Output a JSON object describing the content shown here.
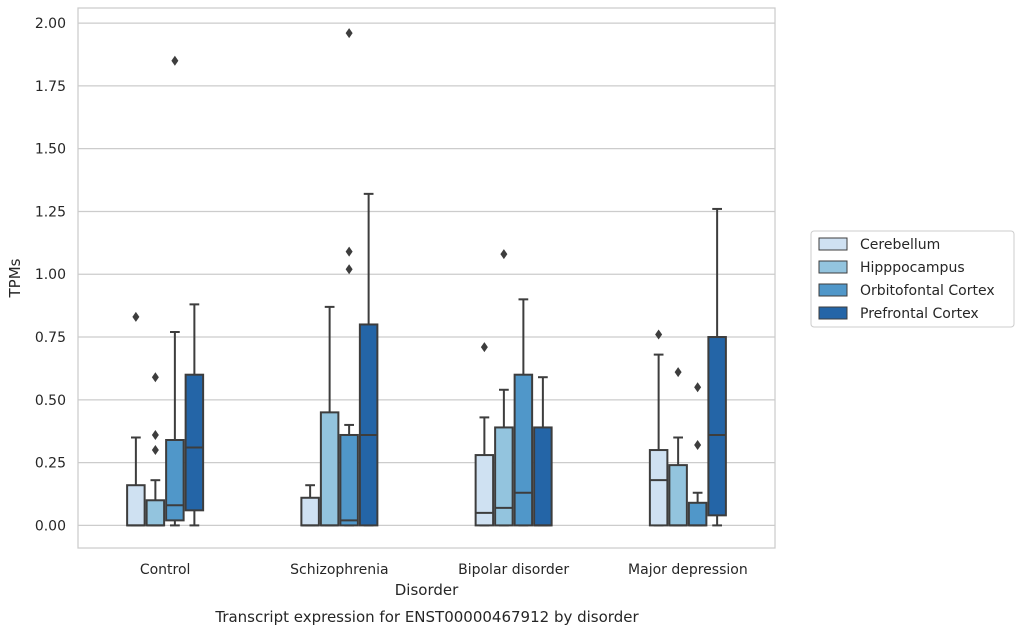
{
  "chart_data": {
    "type": "box",
    "title": "",
    "caption": "Transcript expression for ENST00000467912 by disorder",
    "xlabel": "Disorder",
    "ylabel": "TPMs",
    "ylim": [
      -0.09,
      2.06
    ],
    "yticks": [
      "0.00",
      "0.25",
      "0.50",
      "0.75",
      "1.00",
      "1.25",
      "1.50",
      "1.75",
      "2.00"
    ],
    "grid": "horizontal",
    "legend_position": "right",
    "categories": [
      "Control",
      "Schizophrenia",
      "Bipolar disorder",
      "Major depression"
    ],
    "series": [
      {
        "name": "Cerebellum",
        "color": "#cfe1f2",
        "boxes": [
          {
            "category": "Control",
            "whisker_low": 0.0,
            "q1": 0.0,
            "median": 0.0,
            "q3": 0.16,
            "whisker_high": 0.35,
            "outliers": [
              0.83
            ]
          },
          {
            "category": "Schizophrenia",
            "whisker_low": 0.0,
            "q1": 0.0,
            "median": 0.0,
            "q3": 0.11,
            "whisker_high": 0.16,
            "outliers": []
          },
          {
            "category": "Bipolar disorder",
            "whisker_low": 0.0,
            "q1": 0.0,
            "median": 0.05,
            "q3": 0.28,
            "whisker_high": 0.43,
            "outliers": [
              0.71
            ]
          },
          {
            "category": "Major depression",
            "whisker_low": 0.0,
            "q1": 0.0,
            "median": 0.18,
            "q3": 0.3,
            "whisker_high": 0.68,
            "outliers": [
              0.76
            ]
          }
        ]
      },
      {
        "name": "Hipppocampus",
        "color": "#93c4de",
        "boxes": [
          {
            "category": "Control",
            "whisker_low": 0.0,
            "q1": 0.0,
            "median": 0.0,
            "q3": 0.1,
            "whisker_high": 0.18,
            "outliers": [
              0.3,
              0.36,
              0.59
            ]
          },
          {
            "category": "Schizophrenia",
            "whisker_low": 0.0,
            "q1": 0.0,
            "median": 0.0,
            "q3": 0.45,
            "whisker_high": 0.87,
            "outliers": []
          },
          {
            "category": "Bipolar disorder",
            "whisker_low": 0.0,
            "q1": 0.0,
            "median": 0.07,
            "q3": 0.39,
            "whisker_high": 0.54,
            "outliers": [
              1.08
            ]
          },
          {
            "category": "Major depression",
            "whisker_low": 0.0,
            "q1": 0.0,
            "median": 0.0,
            "q3": 0.24,
            "whisker_high": 0.35,
            "outliers": [
              0.61
            ]
          }
        ]
      },
      {
        "name": "Orbitofontal Cortex",
        "color": "#5097c9",
        "boxes": [
          {
            "category": "Control",
            "whisker_low": 0.0,
            "q1": 0.02,
            "median": 0.08,
            "q3": 0.34,
            "whisker_high": 0.77,
            "outliers": [
              1.85
            ]
          },
          {
            "category": "Schizophrenia",
            "whisker_low": 0.0,
            "q1": 0.0,
            "median": 0.02,
            "q3": 0.36,
            "whisker_high": 0.4,
            "outliers": [
              1.02,
              1.09,
              1.96
            ]
          },
          {
            "category": "Bipolar disorder",
            "whisker_low": 0.0,
            "q1": 0.0,
            "median": 0.13,
            "q3": 0.6,
            "whisker_high": 0.9,
            "outliers": []
          },
          {
            "category": "Major depression",
            "whisker_low": 0.0,
            "q1": 0.0,
            "median": 0.0,
            "q3": 0.09,
            "whisker_high": 0.13,
            "outliers": [
              0.32,
              0.55
            ]
          }
        ]
      },
      {
        "name": "Prefrontal Cortex",
        "color": "#2465a7",
        "boxes": [
          {
            "category": "Control",
            "whisker_low": 0.0,
            "q1": 0.06,
            "median": 0.31,
            "q3": 0.6,
            "whisker_high": 0.88,
            "outliers": []
          },
          {
            "category": "Schizophrenia",
            "whisker_low": 0.0,
            "q1": 0.0,
            "median": 0.36,
            "q3": 0.8,
            "whisker_high": 1.32,
            "outliers": []
          },
          {
            "category": "Bipolar disorder",
            "whisker_low": 0.0,
            "q1": 0.0,
            "median": 0.0,
            "q3": 0.39,
            "whisker_high": 0.59,
            "outliers": []
          },
          {
            "category": "Major depression",
            "whisker_low": 0.0,
            "q1": 0.04,
            "median": 0.36,
            "q3": 0.75,
            "whisker_high": 1.26,
            "outliers": []
          }
        ]
      }
    ]
  }
}
